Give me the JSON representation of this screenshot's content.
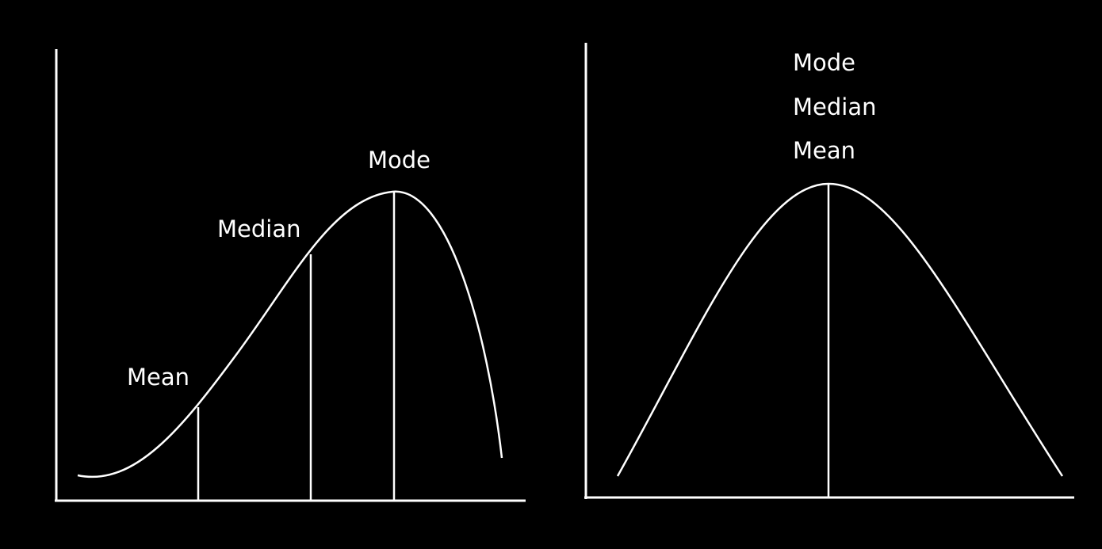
{
  "diagrams": [
    {
      "id": "skewed",
      "labels": {
        "mean": "Mean",
        "median": "Median",
        "mode": "Mode"
      }
    },
    {
      "id": "symmetric",
      "labels": {
        "mode": "Mode",
        "median": "Median",
        "mean": "Mean"
      }
    }
  ],
  "colors": {
    "background": "#000000",
    "stroke": "#ffffff"
  }
}
